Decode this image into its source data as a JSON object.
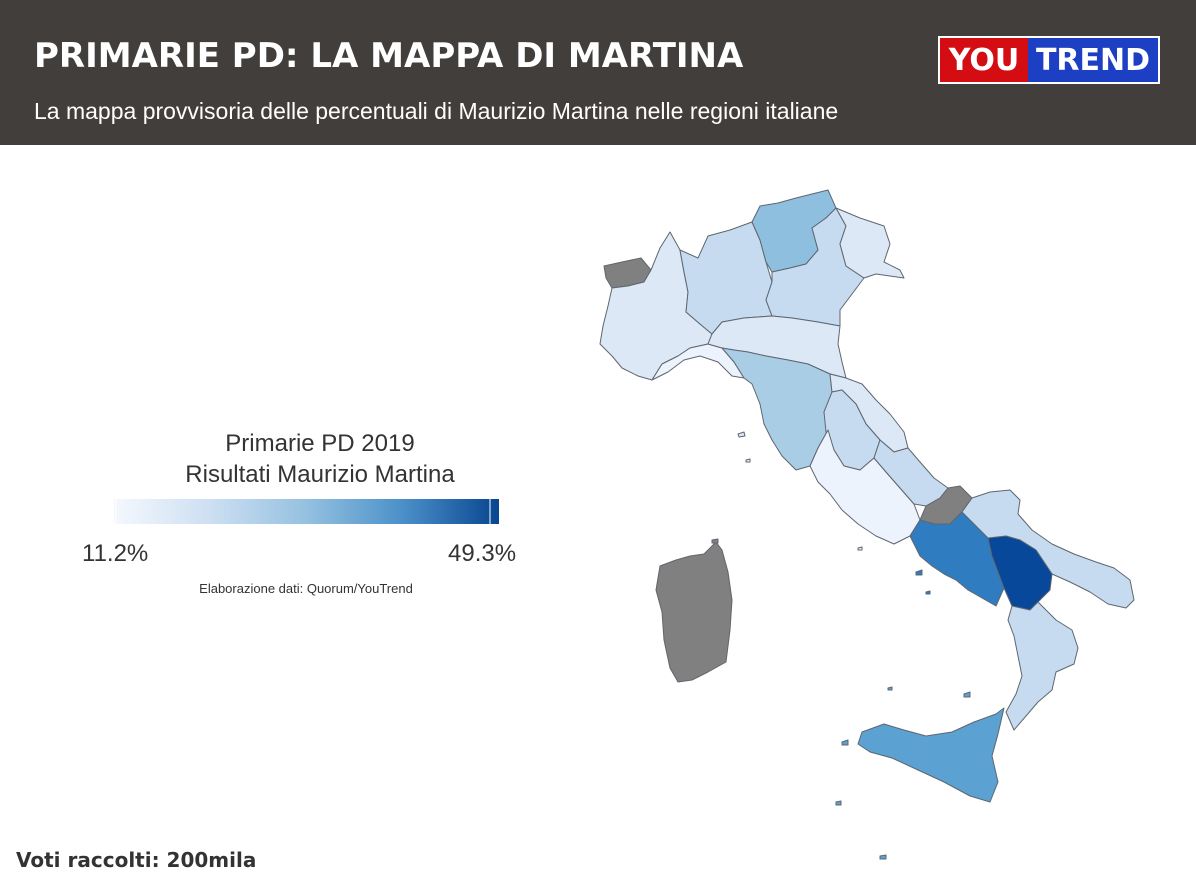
{
  "header": {
    "title": "PRIMARIE PD: LA MAPPA DI MARTINA",
    "subtitle": "La mappa provvisoria delle percentuali di Maurizio Martina nelle regioni italiane",
    "background_color": "#413e3b"
  },
  "logo": {
    "part1": "YOU",
    "part2": "TREND",
    "color1": "#d40d12",
    "color2": "#1c3fc4"
  },
  "legend": {
    "title_line1": "Primarie PD 2019",
    "title_line2": "Risultati Maurizio Martina",
    "min_label": "11.2%",
    "max_label": "49.3%",
    "source": "Elaborazione dati: Quorum/YouTrend",
    "color_low": "#f2f6fd",
    "color_high": "#08458f"
  },
  "footer": {
    "text": "Voti raccolti: 200mila"
  },
  "map_colors": {
    "no_data": "#808080",
    "very_light": "#edf3fc",
    "light": "#dce8f6",
    "light_medium": "#c6dbef",
    "medium_light": "#a9cde5",
    "medium": "#8ebfdf",
    "strong": "#5ba1d1",
    "darker": "#2f7dc0",
    "darkest": "#08489a"
  }
}
